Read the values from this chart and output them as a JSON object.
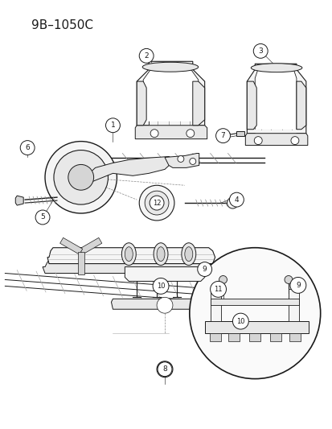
{
  "title": "9B–1050C",
  "background_color": "#ffffff",
  "title_fontsize": 11,
  "fig_width": 4.14,
  "fig_height": 5.33,
  "dpi": 100,
  "line_color": "#1a1a1a",
  "fill_light": "#f5f5f5",
  "fill_mid": "#e8e8e8",
  "fill_dark": "#d5d5d5"
}
